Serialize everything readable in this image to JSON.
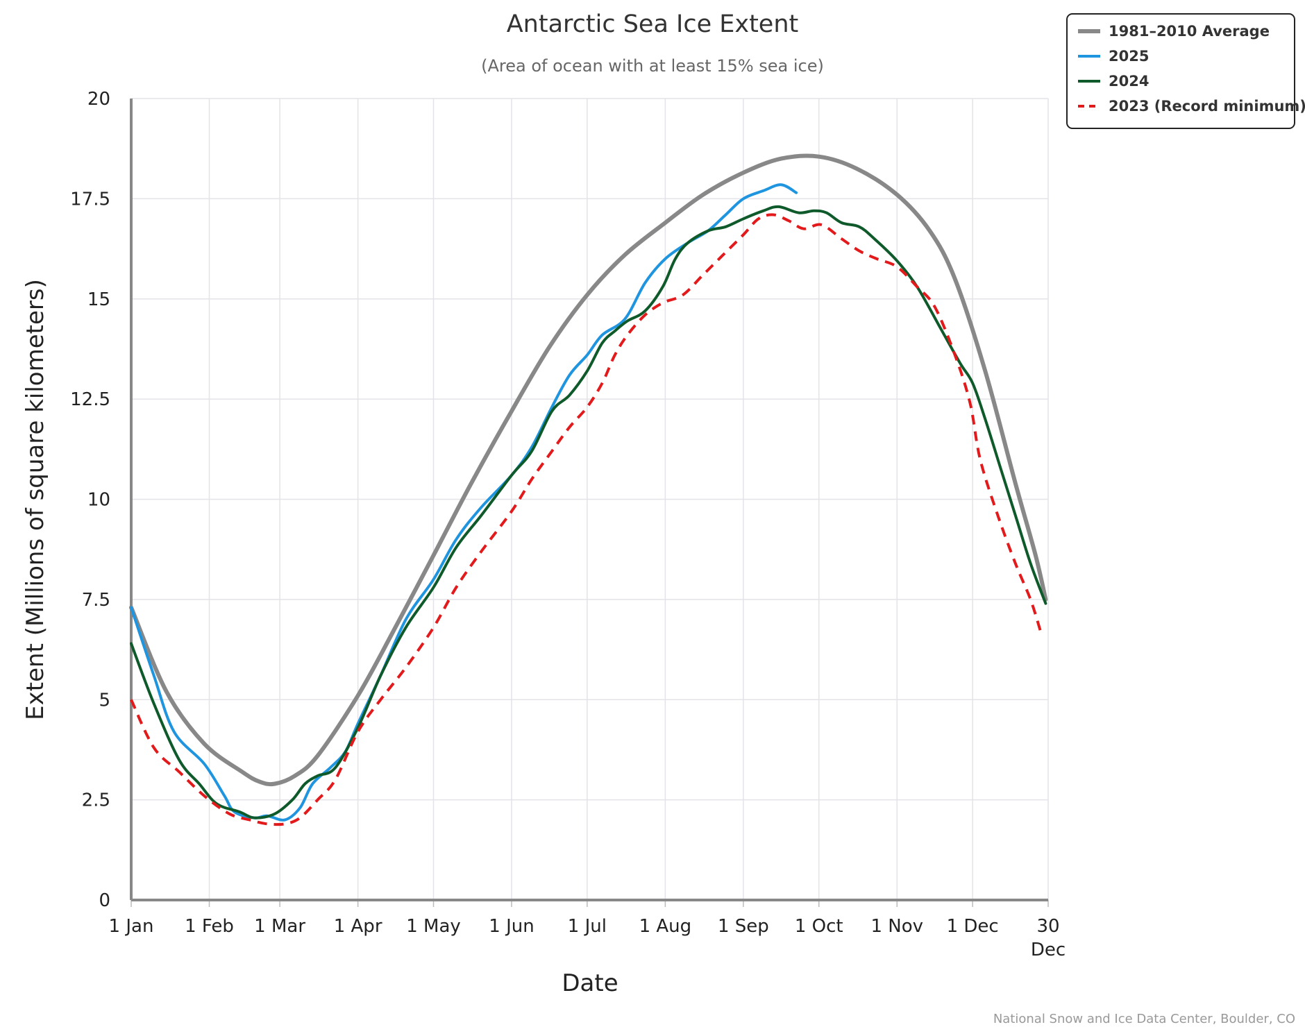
{
  "chart_data": {
    "type": "line",
    "title": "Antarctic Sea Ice Extent",
    "subtitle": "(Area of ocean with at least 15% sea ice)",
    "xlabel": "Date",
    "ylabel": "Extent (Millions of square kilometers)",
    "credit": "National Snow and Ice Data Center, Boulder, CO",
    "x_unit": "day of year",
    "xlim": [
      1,
      365
    ],
    "ylim": [
      0,
      20
    ],
    "y_ticks": [
      0,
      2.5,
      5,
      7.5,
      10,
      12.5,
      15,
      17.5,
      20
    ],
    "y_tick_labels": [
      "0",
      "2.5",
      "5",
      "7.5",
      "10",
      "12.5",
      "15",
      "17.5",
      "20"
    ],
    "x_ticks": [
      {
        "day": 1,
        "label": "1 Jan"
      },
      {
        "day": 32,
        "label": "1 Feb"
      },
      {
        "day": 60,
        "label": "1 Mar"
      },
      {
        "day": 91,
        "label": "1 Apr"
      },
      {
        "day": 121,
        "label": "1 May"
      },
      {
        "day": 152,
        "label": "1 Jun"
      },
      {
        "day": 182,
        "label": "1 Jul"
      },
      {
        "day": 213,
        "label": "1 Aug"
      },
      {
        "day": 244,
        "label": "1 Sep"
      },
      {
        "day": 274,
        "label": "1 Oct"
      },
      {
        "day": 305,
        "label": "1 Nov"
      },
      {
        "day": 335,
        "label": "1 Dec"
      },
      {
        "day": 365,
        "label": "30",
        "label2": "Dec"
      }
    ],
    "grid": true,
    "legend_position": "top-right",
    "series": [
      {
        "name": "1981–2010 Average",
        "color": "#888888",
        "dash": false,
        "points": [
          [
            1,
            7.3
          ],
          [
            15,
            5.2
          ],
          [
            30,
            3.9
          ],
          [
            45,
            3.2
          ],
          [
            52,
            2.95
          ],
          [
            58,
            2.9
          ],
          [
            66,
            3.1
          ],
          [
            75,
            3.6
          ],
          [
            91,
            5.1
          ],
          [
            105,
            6.7
          ],
          [
            121,
            8.6
          ],
          [
            136,
            10.4
          ],
          [
            152,
            12.2
          ],
          [
            167,
            13.8
          ],
          [
            182,
            15.1
          ],
          [
            197,
            16.1
          ],
          [
            213,
            16.9
          ],
          [
            228,
            17.6
          ],
          [
            244,
            18.15
          ],
          [
            259,
            18.5
          ],
          [
            274,
            18.55
          ],
          [
            289,
            18.25
          ],
          [
            305,
            17.6
          ],
          [
            318,
            16.7
          ],
          [
            328,
            15.5
          ],
          [
            340,
            13.2
          ],
          [
            352,
            10.4
          ],
          [
            360,
            8.6
          ],
          [
            364,
            7.5
          ]
        ]
      },
      {
        "name": "2025",
        "color": "#1f95e0",
        "dash": false,
        "points": [
          [
            1,
            7.3
          ],
          [
            10,
            5.6
          ],
          [
            18,
            4.2
          ],
          [
            30,
            3.4
          ],
          [
            38,
            2.6
          ],
          [
            42,
            2.2
          ],
          [
            50,
            2.05
          ],
          [
            55,
            2.1
          ],
          [
            62,
            2.0
          ],
          [
            68,
            2.3
          ],
          [
            73,
            2.9
          ],
          [
            80,
            3.3
          ],
          [
            86,
            3.7
          ],
          [
            91,
            4.4
          ],
          [
            100,
            5.6
          ],
          [
            110,
            7.0
          ],
          [
            121,
            8.0
          ],
          [
            130,
            9.0
          ],
          [
            140,
            9.8
          ],
          [
            152,
            10.6
          ],
          [
            160,
            11.3
          ],
          [
            168,
            12.3
          ],
          [
            175,
            13.1
          ],
          [
            182,
            13.6
          ],
          [
            188,
            14.1
          ],
          [
            197,
            14.5
          ],
          [
            205,
            15.4
          ],
          [
            213,
            16.0
          ],
          [
            222,
            16.4
          ],
          [
            230,
            16.7
          ],
          [
            237,
            17.1
          ],
          [
            244,
            17.5
          ],
          [
            252,
            17.7
          ],
          [
            259,
            17.85
          ],
          [
            265,
            17.65
          ]
        ]
      },
      {
        "name": "2024",
        "color": "#0f5a2a",
        "dash": false,
        "points": [
          [
            1,
            6.4
          ],
          [
            10,
            4.9
          ],
          [
            20,
            3.5
          ],
          [
            28,
            2.9
          ],
          [
            35,
            2.4
          ],
          [
            44,
            2.2
          ],
          [
            50,
            2.05
          ],
          [
            58,
            2.15
          ],
          [
            65,
            2.5
          ],
          [
            70,
            2.9
          ],
          [
            75,
            3.1
          ],
          [
            82,
            3.3
          ],
          [
            91,
            4.3
          ],
          [
            100,
            5.6
          ],
          [
            110,
            6.8
          ],
          [
            121,
            7.8
          ],
          [
            130,
            8.8
          ],
          [
            140,
            9.6
          ],
          [
            152,
            10.6
          ],
          [
            160,
            11.2
          ],
          [
            168,
            12.2
          ],
          [
            175,
            12.6
          ],
          [
            182,
            13.2
          ],
          [
            188,
            13.9
          ],
          [
            193,
            14.2
          ],
          [
            198,
            14.45
          ],
          [
            205,
            14.7
          ],
          [
            212,
            15.3
          ],
          [
            217,
            16.0
          ],
          [
            222,
            16.4
          ],
          [
            230,
            16.7
          ],
          [
            237,
            16.8
          ],
          [
            244,
            17.0
          ],
          [
            252,
            17.2
          ],
          [
            258,
            17.3
          ],
          [
            266,
            17.15
          ],
          [
            272,
            17.2
          ],
          [
            277,
            17.15
          ],
          [
            283,
            16.9
          ],
          [
            290,
            16.8
          ],
          [
            296,
            16.5
          ],
          [
            305,
            15.95
          ],
          [
            313,
            15.3
          ],
          [
            322,
            14.3
          ],
          [
            330,
            13.4
          ],
          [
            335,
            12.9
          ],
          [
            340,
            12.0
          ],
          [
            346,
            10.8
          ],
          [
            352,
            9.6
          ],
          [
            358,
            8.4
          ],
          [
            364,
            7.4
          ]
        ]
      },
      {
        "name": "2023 (Record minimum)",
        "color": "#e31a1c",
        "dash": true,
        "points": [
          [
            1,
            5.0
          ],
          [
            10,
            3.8
          ],
          [
            20,
            3.2
          ],
          [
            30,
            2.6
          ],
          [
            40,
            2.15
          ],
          [
            48,
            2.0
          ],
          [
            55,
            1.9
          ],
          [
            62,
            1.9
          ],
          [
            68,
            2.05
          ],
          [
            75,
            2.5
          ],
          [
            82,
            3.0
          ],
          [
            91,
            4.2
          ],
          [
            100,
            5.0
          ],
          [
            110,
            5.8
          ],
          [
            121,
            6.8
          ],
          [
            130,
            7.8
          ],
          [
            140,
            8.7
          ],
          [
            152,
            9.7
          ],
          [
            160,
            10.5
          ],
          [
            168,
            11.2
          ],
          [
            175,
            11.8
          ],
          [
            182,
            12.3
          ],
          [
            188,
            12.9
          ],
          [
            193,
            13.6
          ],
          [
            198,
            14.1
          ],
          [
            205,
            14.6
          ],
          [
            212,
            14.9
          ],
          [
            220,
            15.1
          ],
          [
            228,
            15.6
          ],
          [
            236,
            16.1
          ],
          [
            244,
            16.6
          ],
          [
            250,
            17.0
          ],
          [
            256,
            17.1
          ],
          [
            262,
            16.95
          ],
          [
            268,
            16.75
          ],
          [
            275,
            16.85
          ],
          [
            283,
            16.5
          ],
          [
            290,
            16.2
          ],
          [
            297,
            16.0
          ],
          [
            305,
            15.8
          ],
          [
            313,
            15.3
          ],
          [
            320,
            14.8
          ],
          [
            328,
            13.6
          ],
          [
            334,
            12.4
          ],
          [
            338,
            11.0
          ],
          [
            345,
            9.6
          ],
          [
            352,
            8.4
          ],
          [
            358,
            7.5
          ],
          [
            362,
            6.7
          ]
        ]
      }
    ]
  }
}
